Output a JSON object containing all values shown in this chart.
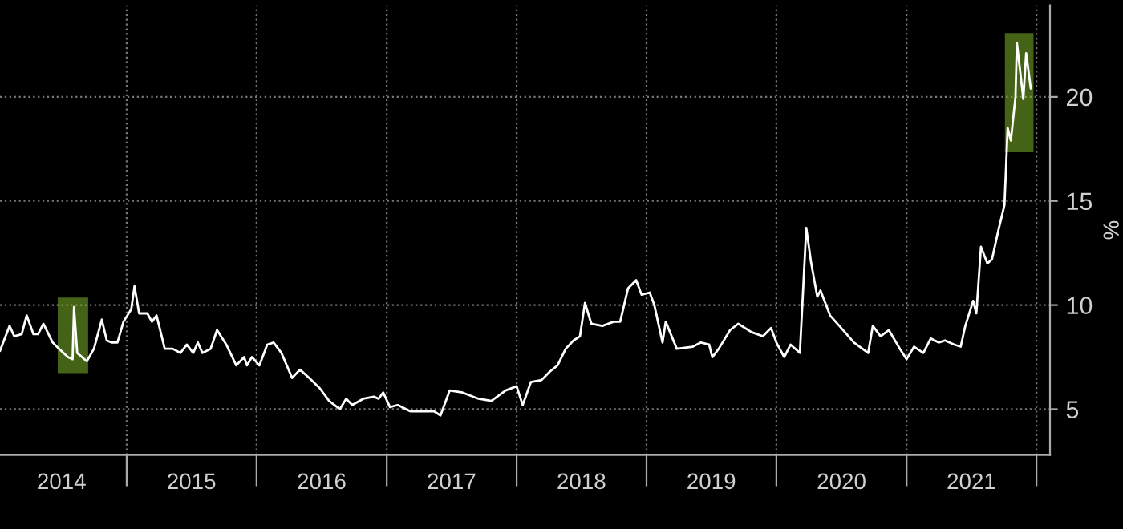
{
  "chart_data": {
    "type": "line",
    "ylabel": "%",
    "x": [
      "2014-01-10",
      "2014-02-06",
      "2014-02-19",
      "2014-03-12",
      "2014-03-26",
      "2014-04-14",
      "2014-04-27",
      "2014-05-12",
      "2014-06-07",
      "2014-06-25",
      "2014-07-20",
      "2014-08-02",
      "2014-08-06",
      "2014-08-15",
      "2014-09-11",
      "2014-10-01",
      "2014-10-23",
      "2014-11-06",
      "2014-11-19",
      "2014-12-06",
      "2014-12-23",
      "2015-01-14",
      "2015-01-23",
      "2015-02-05",
      "2015-02-28",
      "2015-03-13",
      "2015-03-26",
      "2015-04-18",
      "2015-05-10",
      "2015-06-01",
      "2015-06-19",
      "2015-07-07",
      "2015-07-20",
      "2015-08-02",
      "2015-08-25",
      "2015-09-12",
      "2015-10-08",
      "2015-11-05",
      "2015-11-27",
      "2015-12-05",
      "2015-12-19",
      "2016-01-09",
      "2016-01-31",
      "2016-02-18",
      "2016-03-11",
      "2016-04-10",
      "2016-05-02",
      "2016-05-28",
      "2016-06-27",
      "2016-07-23",
      "2016-08-22",
      "2016-09-09",
      "2016-09-26",
      "2016-10-27",
      "2016-11-26",
      "2016-12-09",
      "2016-12-22",
      "2017-01-10",
      "2017-02-01",
      "2017-03-08",
      "2017-05-14",
      "2017-06-01",
      "2017-06-27",
      "2017-08-02",
      "2017-09-16",
      "2017-10-22",
      "2017-12-01",
      "2018-01-01",
      "2018-01-18",
      "2018-02-10",
      "2018-03-12",
      "2018-04-04",
      "2018-04-26",
      "2018-05-19",
      "2018-06-10",
      "2018-06-28",
      "2018-07-12",
      "2018-07-30",
      "2018-08-30",
      "2018-10-01",
      "2018-10-19",
      "2018-11-10",
      "2018-12-03",
      "2018-12-18",
      "2019-01-10",
      "2019-01-23",
      "2019-02-15",
      "2019-02-24",
      "2019-03-27",
      "2019-05-11",
      "2019-06-03",
      "2019-06-26",
      "2019-07-05",
      "2019-07-23",
      "2019-08-24",
      "2019-09-16",
      "2019-10-23",
      "2019-11-24",
      "2019-12-17",
      "2020-01-01",
      "2020-01-23",
      "2020-02-10",
      "2020-03-07",
      "2020-03-25",
      "2020-04-07",
      "2020-04-25",
      "2020-05-04",
      "2020-05-31",
      "2020-07-01",
      "2020-08-06",
      "2020-09-15",
      "2020-09-28",
      "2020-10-20",
      "2020-11-12",
      "2020-12-13",
      "2021-01-01",
      "2021-01-22",
      "2021-02-17",
      "2021-03-10",
      "2021-04-01",
      "2021-04-19",
      "2021-05-15",
      "2021-06-02",
      "2021-06-15",
      "2021-07-07",
      "2021-07-16",
      "2021-07-29",
      "2021-08-16",
      "2021-08-29",
      "2021-09-16",
      "2021-10-03",
      "2021-10-12",
      "2021-10-21",
      "2021-11-03",
      "2021-11-07",
      "2021-11-25",
      "2021-12-03",
      "2021-12-16"
    ],
    "series": [
      {
        "color": "#ffffff",
        "values": [
          7.8,
          9.0,
          8.5,
          8.6,
          9.5,
          8.6,
          8.6,
          9.1,
          8.2,
          7.9,
          7.5,
          7.4,
          9.9,
          7.7,
          7.3,
          7.9,
          9.3,
          8.3,
          8.2,
          8.2,
          9.2,
          9.8,
          10.9,
          9.6,
          9.6,
          9.2,
          9.5,
          7.9,
          7.9,
          7.7,
          8.1,
          7.7,
          8.2,
          7.7,
          7.9,
          8.8,
          8.1,
          7.1,
          7.5,
          7.1,
          7.5,
          7.1,
          8.1,
          8.2,
          7.7,
          6.5,
          6.9,
          6.5,
          6.0,
          5.4,
          5.0,
          5.5,
          5.2,
          5.5,
          5.6,
          5.5,
          5.8,
          5.1,
          5.2,
          4.9,
          4.9,
          4.7,
          5.9,
          5.8,
          5.5,
          5.4,
          5.9,
          6.1,
          5.2,
          6.3,
          6.4,
          6.8,
          7.1,
          7.9,
          8.3,
          8.5,
          10.1,
          9.1,
          9.0,
          9.2,
          9.2,
          10.8,
          11.2,
          10.5,
          10.6,
          10.0,
          8.2,
          9.2,
          7.9,
          8.0,
          8.2,
          8.1,
          7.5,
          7.9,
          8.8,
          9.1,
          8.7,
          8.5,
          8.9,
          8.2,
          7.5,
          8.1,
          7.7,
          13.7,
          12.1,
          10.4,
          10.7,
          9.5,
          8.9,
          8.2,
          7.7,
          9.0,
          8.5,
          8.8,
          7.9,
          7.4,
          8.0,
          7.7,
          8.4,
          8.2,
          8.3,
          8.1,
          8.0,
          9.0,
          10.2,
          9.6,
          12.8,
          12.0,
          12.2,
          13.6,
          14.8,
          18.5,
          17.9,
          20.0,
          22.6,
          19.9,
          22.1,
          20.4
        ]
      }
    ],
    "xlim": [
      "2014-01-10",
      "2022-02-08"
    ],
    "ylim": [
      2.8,
      24.4
    ],
    "yticks": [
      5,
      10,
      15,
      20
    ],
    "xticks": [
      {
        "value": "2014-07-02",
        "label": "2014"
      },
      {
        "value": "2015-01-01",
        "label": null
      },
      {
        "value": "2015-07-02",
        "label": "2015"
      },
      {
        "value": "2016-01-01",
        "label": null
      },
      {
        "value": "2016-07-02",
        "label": "2016"
      },
      {
        "value": "2017-01-01",
        "label": null
      },
      {
        "value": "2017-07-02",
        "label": "2017"
      },
      {
        "value": "2018-01-01",
        "label": null
      },
      {
        "value": "2018-07-02",
        "label": "2018"
      },
      {
        "value": "2019-01-01",
        "label": null
      },
      {
        "value": "2019-07-02",
        "label": "2019"
      },
      {
        "value": "2020-01-01",
        "label": null
      },
      {
        "value": "2020-07-02",
        "label": "2020"
      },
      {
        "value": "2021-01-01",
        "label": null
      },
      {
        "value": "2021-07-02",
        "label": "2021"
      },
      {
        "value": "2022-01-01",
        "label": null
      }
    ],
    "bands": [
      {
        "axis": "x",
        "from": "2014-06-25",
        "to": "2014-09-11",
        "color": "#7fb52a"
      },
      {
        "axis": "x",
        "from": "2021-10-08",
        "to": "2021-12-20",
        "color": "#7fb52a"
      }
    ],
    "grid": true,
    "legend": false,
    "marker": "none",
    "line_style": "solid"
  }
}
